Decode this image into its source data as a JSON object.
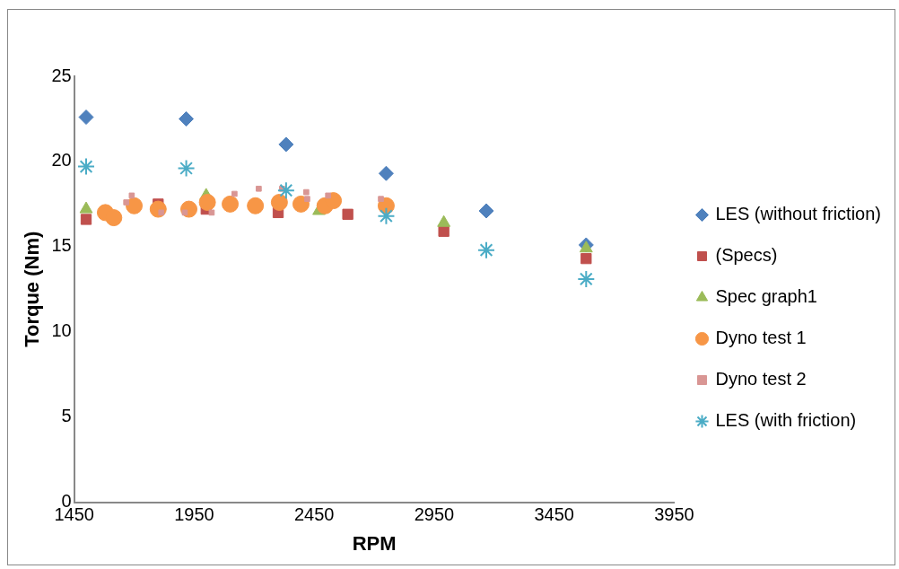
{
  "chart_data": {
    "type": "scatter",
    "xlabel": "RPM",
    "ylabel": "Torque (Nm)",
    "xlim": [
      1450,
      3950
    ],
    "xticks": [
      1450,
      1950,
      2450,
      2950,
      3450,
      3950
    ],
    "ylim": [
      0,
      25
    ],
    "yticks": [
      0,
      5,
      10,
      15,
      20,
      25
    ],
    "grid": false,
    "legend": "right",
    "series": [
      {
        "name": "LES (without friction)",
        "color": "#4f81bd",
        "marker": "diamond",
        "x": [
          1500,
          1917,
          2333,
          2750,
          3167,
          3583
        ],
        "values": [
          22.6,
          22.5,
          21.0,
          19.3,
          17.1,
          15.1
        ]
      },
      {
        "name": "(Specs)",
        "color": "#c0504d",
        "marker": "square",
        "x": [
          1500,
          1800,
          2000,
          2300,
          2590,
          2990,
          3583
        ],
        "values": [
          16.6,
          17.5,
          17.2,
          17.0,
          16.9,
          15.9,
          14.3
        ]
      },
      {
        "name": "Spec graph1",
        "color": "#9bbb59",
        "marker": "triangle",
        "x": [
          1500,
          2000,
          2470,
          2990,
          3583
        ],
        "values": [
          17.2,
          18.0,
          17.1,
          16.4,
          14.9
        ]
      },
      {
        "name": "Dyno test 1",
        "color": "#f79646",
        "marker": "circle",
        "x": [
          1580,
          1615,
          1700,
          1800,
          1928,
          2005,
          2100,
          2205,
          2305,
          2395,
          2495,
          2530,
          2750
        ],
        "values": [
          17.0,
          16.7,
          17.4,
          17.2,
          17.2,
          17.6,
          17.5,
          17.4,
          17.6,
          17.5,
          17.4,
          17.7,
          17.4
        ]
      },
      {
        "name": "Dyno test 2",
        "color": "#d99694",
        "marker": "square",
        "x": [
          1667,
          1690,
          1813,
          1911,
          2023,
          2118,
          2219,
          2316,
          2417,
          2421,
          2508,
          2728
        ],
        "values": [
          17.6,
          18.0,
          17.0,
          17.0,
          17.0,
          18.1,
          18.4,
          18.4,
          18.2,
          17.8,
          18.0,
          17.8
        ]
      },
      {
        "name": "LES (with friction)",
        "color": "#4bacc6",
        "marker": "cross",
        "x": [
          1500,
          1917,
          2333,
          2750,
          3167,
          3583
        ],
        "values": [
          19.7,
          19.6,
          18.3,
          16.8,
          14.8,
          13.1
        ]
      }
    ]
  }
}
